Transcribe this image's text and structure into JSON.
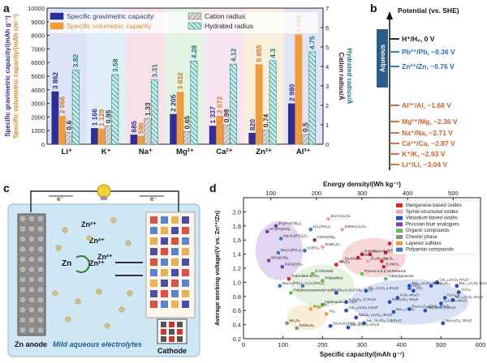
{
  "panels": {
    "a": "a",
    "b": "b",
    "c": "c",
    "d": "d"
  },
  "chart_data": [
    {
      "type": "bar",
      "categories": [
        "Li⁺",
        "K⁺",
        "Na⁺",
        "Mg²⁺",
        "Ca²⁺",
        "Zn²⁺",
        "Al³⁺"
      ],
      "series": [
        {
          "name": "Specific gravimetric capacity",
          "axis": "left",
          "values": [
            3862,
            1166,
            685,
            2205,
            1337,
            820,
            2980
          ],
          "labels": [
            "3 862",
            "1 166",
            "685",
            "2 205",
            "1 337",
            "820",
            "2 980"
          ]
        },
        {
          "name": "Specific volumetric capacity",
          "axis": "left",
          "values": [
            2066,
            1129,
            586,
            3832,
            2072,
            5855,
            8046
          ],
          "labels": [
            "2 066",
            "1 129",
            "586",
            "3 832",
            "2 072",
            "5 855",
            "8 046"
          ]
        },
        {
          "name": "Cation radius",
          "axis": "right",
          "values": [
            0.6,
            0.95,
            1.33,
            0.65,
            0.99,
            0.74,
            0.5
          ],
          "labels": [
            "0.6",
            "0.95",
            "1.33",
            "0.65",
            "0.99",
            "0.74",
            "0.5"
          ]
        },
        {
          "name": "Hydrated radius",
          "axis": "right",
          "values": [
            3.82,
            3.58,
            3.31,
            4.28,
            4.12,
            4.3,
            4.75
          ],
          "labels": [
            "3.82",
            "3.58",
            "3.31",
            "4.28",
            "4.12",
            "4.3",
            "4.75"
          ]
        }
      ],
      "ylabel": "Specific gravimetric capacity/(mAh g⁻¹)",
      "ylabel2": "Specific volumetric capacity/(mAh cm⁻³)",
      "y2label": "Cation radius/Å",
      "y2label2": "Hydrated radius/Å",
      "ylim": [
        0,
        10000
      ],
      "y2lim": [
        0,
        7
      ],
      "yticks": [
        "0",
        "1000",
        "2000",
        "3000",
        "4000",
        "5000",
        "6000",
        "7000",
        "8000",
        "9000",
        "10000"
      ],
      "y2ticks": [
        "0",
        "1",
        "2",
        "3",
        "4",
        "5",
        "6",
        "7"
      ],
      "colors": {
        "gravimetric": "#2e2e9a",
        "volumetric": "#f39a3a",
        "cation": "#9a9a9a",
        "hydrated": "#1f8f8f"
      },
      "band_colors": [
        "#dde3f6",
        "#dfeef8",
        "#f7e1e6",
        "#e2f3e1",
        "#f8e4f0",
        "#f8efdd",
        "#e4e3f5"
      ],
      "legend_position": "top"
    },
    {
      "type": "scatter",
      "title": "",
      "xlabel": "Specific capacity/(mAh g⁻¹)",
      "ylabel": "Average working voltage/(V vs. Zn²⁺/Zn)",
      "x2label": "Energy density/(Wh kg⁻¹)",
      "xlim": [
        0,
        600
      ],
      "ylim": [
        0.2,
        2.2
      ],
      "xticks": [
        "0",
        "100",
        "200",
        "300",
        "400",
        "500",
        "600"
      ],
      "yticks": [
        "0.2",
        "0.4",
        "0.6",
        "0.8",
        "1.0",
        "1.2",
        "1.4",
        "1.6",
        "1.8",
        "2.0"
      ],
      "x2ticks": [
        "100",
        "200",
        "300",
        "400",
        "500"
      ],
      "legend_position": "top-right",
      "legend": [
        {
          "name": "Manganese-based oxides",
          "color": "#d9262b"
        },
        {
          "name": "Spinel-structured oxides",
          "color": "#e9a7b0"
        },
        {
          "name": "Vanadium-based oxides",
          "color": "#1f4fc6"
        },
        {
          "name": "Prussian blue analogues",
          "color": "#7a3fb0"
        },
        {
          "name": "Organic compounds",
          "color": "#67bc52"
        },
        {
          "name": "Chevrel phase",
          "color": "#8e8e8e"
        },
        {
          "name": "Layered sulfides",
          "color": "#e8a23a"
        },
        {
          "name": "Polyanion compounds",
          "color": "#3a7cc0"
        }
      ],
      "points": [
        {
          "label": "KCuFe(CN)₆",
          "x": 60,
          "y": 1.72,
          "group": "Prussian blue analogues"
        },
        {
          "label": "Zn₃[Fe(CN)₆]₂",
          "x": 82,
          "y": 1.8,
          "group": "Prussian blue analogues"
        },
        {
          "label": "Na₃V₂(PO₄)₂F₃",
          "x": 95,
          "y": 1.62,
          "group": "Polyanion compounds"
        },
        {
          "label": "Na₂V₂(PO₄)₃",
          "x": 88,
          "y": 1.42,
          "group": "Polyanion compounds"
        },
        {
          "label": "NiFe(CN)₆",
          "x": 64,
          "y": 1.31,
          "group": "Prussian blue analogues"
        },
        {
          "label": "FeFe(CN)₆",
          "x": 98,
          "y": 1.22,
          "group": "Prussian blue analogues"
        },
        {
          "label": "Todorokite-MnO₂",
          "x": 115,
          "y": 1.05,
          "group": "Manganese-based oxides"
        },
        {
          "label": "Na₃V₂(PO₄)₃",
          "x": 92,
          "y": 0.95,
          "group": "Polyanion compounds"
        },
        {
          "label": "Poly(benzoquinonyl sulfide)",
          "x": 120,
          "y": 0.85,
          "group": "Organic compounds"
        },
        {
          "label": "Hydroquinone-COF",
          "x": 200,
          "y": 0.68,
          "group": "Organic compounds"
        },
        {
          "label": "Li₃V₂(PO₄)₃",
          "x": 150,
          "y": 0.95,
          "group": "Polyanion compounds"
        },
        {
          "label": "VOPO₄",
          "x": 155,
          "y": 1.45,
          "group": "Polyanion compounds"
        },
        {
          "label": "LiV₂(PO₄)₃",
          "x": 170,
          "y": 1.75,
          "group": "Polyanion compounds"
        },
        {
          "label": "ZnAl₂Co₂O₄",
          "x": 215,
          "y": 1.9,
          "group": "Spinel-structured oxides"
        },
        {
          "label": "ZnMn₂Co₂O₄",
          "x": 250,
          "y": 1.75,
          "group": "Spinel-structured oxides"
        },
        {
          "label": "CoFe(CN)₆",
          "x": 180,
          "y": 1.6,
          "group": "Prussian blue analogues"
        },
        {
          "label": "ZnMn₂O₄",
          "x": 200,
          "y": 1.5,
          "group": "Spinel-structured oxides"
        },
        {
          "label": "Polyaniline",
          "x": 200,
          "y": 1.02,
          "group": "Organic compounds"
        },
        {
          "label": "β-Chloranil",
          "x": 175,
          "y": 1.12,
          "group": "Organic compounds"
        },
        {
          "label": "Pyrene-4,5,9,10-tetraone",
          "x": 300,
          "y": 1.12,
          "group": "Organic compounds"
        },
        {
          "label": "Calix[4]quinone",
          "x": 360,
          "y": 1.05,
          "group": "Organic compounds"
        },
        {
          "label": "γ-MnO₂",
          "x": 370,
          "y": 1.55,
          "group": "Manganese-based oxides"
        },
        {
          "label": "ε-MnO₂",
          "x": 360,
          "y": 1.42,
          "group": "Manganese-based oxides"
        },
        {
          "label": "δ-MnO₂",
          "x": 300,
          "y": 1.4,
          "group": "Manganese-based oxides"
        },
        {
          "label": "PANI-MnO₂",
          "x": 320,
          "y": 1.4,
          "group": "Manganese-based oxides"
        },
        {
          "label": "α-MnO₂",
          "x": 290,
          "y": 1.35,
          "group": "Manganese-based oxides"
        },
        {
          "label": "Zn₂Mn₂O₄",
          "x": 315,
          "y": 1.3,
          "group": "Spinel-structured oxides"
        },
        {
          "label": "Zn₂Mn₃O₈",
          "x": 250,
          "y": 1.3,
          "group": "Spinel-structured oxides"
        },
        {
          "label": "Mn₂O₃",
          "x": 235,
          "y": 1.25,
          "group": "Manganese-based oxides"
        },
        {
          "label": "MnO₂",
          "x": 350,
          "y": 1.3,
          "group": "Manganese-based oxides"
        },
        {
          "label": "β-MnO₂",
          "x": 355,
          "y": 1.22,
          "group": "Manganese-based oxides"
        },
        {
          "label": "Mo₆S₈",
          "x": 110,
          "y": 0.42,
          "group": "Chevrel phase"
        },
        {
          "label": "ZnMo₆S₈",
          "x": 135,
          "y": 0.35,
          "group": "Chevrel phase"
        },
        {
          "label": "MoS₂",
          "x": 170,
          "y": 0.62,
          "group": "Layered sulfides"
        },
        {
          "label": "VS₂",
          "x": 190,
          "y": 0.65,
          "group": "Layered sulfides"
        },
        {
          "label": "VS₄",
          "x": 210,
          "y": 0.55,
          "group": "Layered sulfides"
        },
        {
          "label": "Zn₂V₂O₇(OH)₂·2H₂O",
          "x": 220,
          "y": 0.38,
          "group": "Vanadium-based oxides"
        },
        {
          "label": "Zn₀.₂₅V₂O₅·nH₂O",
          "x": 265,
          "y": 0.36,
          "group": "Vanadium-based oxides"
        },
        {
          "label": "Na₁.₃V₁₂O₃₁·1.63H₂O",
          "x": 305,
          "y": 0.42,
          "group": "Vanadium-based oxides"
        },
        {
          "label": "NaCa₀.₆V₆O₁₆·3H₂O",
          "x": 285,
          "y": 0.5,
          "group": "Vanadium-based oxides"
        },
        {
          "label": "Ca₀.₂₅V₂O₅·nH₂O",
          "x": 260,
          "y": 0.6,
          "group": "Vanadium-based oxides"
        },
        {
          "label": "K₂V₆O₁₆·2.7H₂O",
          "x": 260,
          "y": 0.72,
          "group": "Vanadium-based oxides"
        },
        {
          "label": "Na₀.₃₃V₂O₅",
          "x": 380,
          "y": 0.58,
          "group": "Vanadium-based oxides"
        },
        {
          "label": "Na₂V₆O₁₆·3H₂O",
          "x": 370,
          "y": 0.72,
          "group": "Vanadium-based oxides"
        },
        {
          "label": "Zn₃V₂O₇(OH)₂·2H₂O",
          "x": 235,
          "y": 0.85,
          "group": "Vanadium-based oxides"
        },
        {
          "label": "Zn₀.₃V₂O₅·1.5H₂O",
          "x": 310,
          "y": 0.88,
          "group": "Vanadium-based oxides"
        },
        {
          "label": "V₂O₅·nH₂O",
          "x": 390,
          "y": 0.78,
          "group": "Vanadium-based oxides"
        },
        {
          "label": "Fe₅V₁₅O₃₉(OH)₉·9H₂O",
          "x": 420,
          "y": 0.62,
          "group": "Vanadium-based oxides"
        },
        {
          "label": "Co₀.₂₅V₂O₅·nH₂O",
          "x": 490,
          "y": 1.0,
          "group": "Vanadium-based oxides"
        },
        {
          "label": "VO₂",
          "x": 430,
          "y": 0.88,
          "group": "Vanadium-based oxides"
        },
        {
          "label": "V₂O₅",
          "x": 420,
          "y": 0.92,
          "group": "Vanadium-based oxides"
        },
        {
          "label": "Mg₀.₃₄V₂O₅·nH₂O",
          "x": 420,
          "y": 0.95,
          "group": "Vanadium-based oxides"
        },
        {
          "label": "NH₄V₄O₁₀",
          "x": 475,
          "y": 0.95,
          "group": "Vanadium-based oxides"
        },
        {
          "label": "Mn₀.₁₅V₂O₅·nH₂O",
          "x": 540,
          "y": 0.95,
          "group": "Vanadium-based oxides"
        },
        {
          "label": "Na₂V₃O₈·1.5H₂O",
          "x": 460,
          "y": 0.6,
          "group": "Vanadium-based oxides"
        },
        {
          "label": "Na₂V₆O₁₆·3H₂O",
          "x": 505,
          "y": 0.42,
          "group": "Vanadium-based oxides"
        },
        {
          "label": "V₆O₁₃",
          "x": 545,
          "y": 0.86,
          "group": "Vanadium-based oxides"
        },
        {
          "label": "Ni₀.₂₅V₂O₅·nH₂O",
          "x": 530,
          "y": 0.75,
          "group": "Vanadium-based oxides"
        },
        {
          "label": "Li₂V₂O₅·nH₂O",
          "x": 500,
          "y": 0.7,
          "group": "Vanadium-based oxides"
        },
        {
          "label": "H₂V₃O₈",
          "x": 510,
          "y": 0.78,
          "group": "Vanadium-based oxides"
        }
      ]
    }
  ],
  "diagram_b": {
    "axis_title": "Potential (vs. SHE)",
    "band_label": "Aqueous",
    "items": [
      {
        "text": "H⁺/H₂, 0 V",
        "color": "#111111"
      },
      {
        "text": "Pb²⁺/Pb, −0.36 V",
        "color": "#1a6fc4"
      },
      {
        "text": "Zn²⁺/Zn, −0.76 V",
        "color": "#1a6fc4"
      },
      {
        "text": "Al³⁺/Al, −1.68 V",
        "color": "#c8602a"
      },
      {
        "text": "Mg²⁺/Mg, −2.36 V",
        "color": "#c8602a"
      },
      {
        "text": "Na⁺/Na, −2.71 V",
        "color": "#c8602a"
      },
      {
        "text": "Ca²⁺/Ca, −2.87 V",
        "color": "#c8602a"
      },
      {
        "text": "K⁺/K, −2.93 V",
        "color": "#c8602a"
      },
      {
        "text": "Li⁺/Li, −3.04 V",
        "color": "#c8602a"
      }
    ]
  },
  "diagram_c": {
    "anode_label": "Zn anode",
    "cathode_label": "Cathode",
    "electrolyte_label": "Mild aqueous electrolytes",
    "electron": "e⁻",
    "ion": "Zn²⁺",
    "zn": "Zn",
    "colors": {
      "electrolyte": "#cfe6f4",
      "anode": "#8c8c8c",
      "ion": "#d8c27a",
      "wire": "#2a2a2a",
      "bulb": "#f6d23a"
    }
  }
}
